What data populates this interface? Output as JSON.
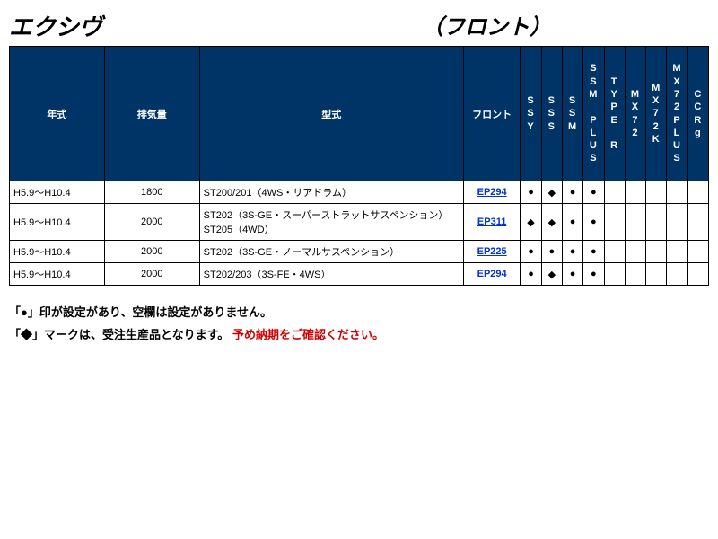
{
  "title": {
    "left": "エクシヴ",
    "right": "（フロント）"
  },
  "colors": {
    "header_bg": "#003366",
    "header_fg": "#ffffff",
    "link": "#0033cc",
    "warning": "#d30000"
  },
  "marks": {
    "circle": "●",
    "diamond": "◆",
    "blank": ""
  },
  "table": {
    "columns": {
      "year": "年式",
      "disp": "排気量",
      "model": "型式",
      "front": "フロント",
      "flags": [
        "SSY",
        "SSS",
        "SSM",
        "SSM PLUS",
        "TYPE R",
        "MX72",
        "MX72K",
        "MX72PLUS",
        "CCRg"
      ]
    },
    "rows": [
      {
        "year": "H5.9～H10.4",
        "disp": "1800",
        "model": "ST200/201（4WS・リアドラム）",
        "front": "EP294",
        "flags": [
          "●",
          "◆",
          "●",
          "●",
          "",
          "",
          "",
          "",
          ""
        ]
      },
      {
        "year": "H5.9～H10.4",
        "disp": "2000",
        "model": "ST202（3S-GE・スーパーストラットサスペンション）\nST205（4WD）",
        "front": "EP311",
        "flags": [
          "◆",
          "◆",
          "●",
          "●",
          "",
          "",
          "",
          "",
          ""
        ]
      },
      {
        "year": "H5.9～H10.4",
        "disp": "2000",
        "model": "ST202（3S-GE・ノーマルサスペンション）",
        "front": "EP225",
        "flags": [
          "●",
          "●",
          "●",
          "●",
          "",
          "",
          "",
          "",
          ""
        ]
      },
      {
        "year": "H5.9～H10.4",
        "disp": "2000",
        "model": "ST202/203（3S-FE・4WS）",
        "front": "EP294",
        "flags": [
          "●",
          "◆",
          "●",
          "●",
          "",
          "",
          "",
          "",
          ""
        ]
      }
    ]
  },
  "notes": {
    "line1": "「●」印が設定があり、空欄は設定がありません。",
    "line2_black": "「◆」マークは、受注生産品となります。",
    "line2_red": "予め納期をご確認ください。"
  }
}
